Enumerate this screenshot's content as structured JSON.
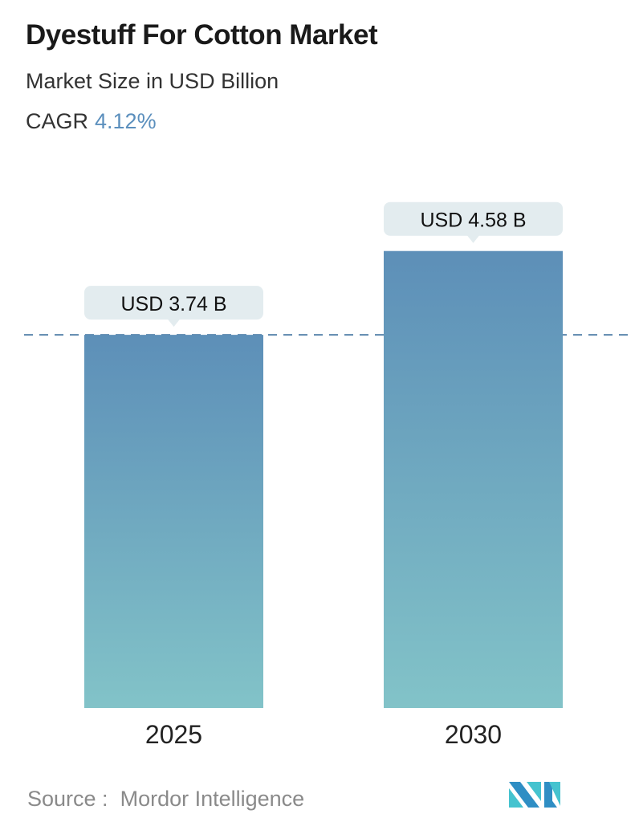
{
  "header": {
    "title": "Dyestuff For Cotton Market",
    "subtitle": "Market Size in USD Billion",
    "cagr_label": "CAGR",
    "cagr_value": "4.12%"
  },
  "chart_data": {
    "type": "bar",
    "categories": [
      "2025",
      "2030"
    ],
    "values": [
      3.74,
      4.58
    ],
    "data_labels": [
      "USD 3.74 B",
      "USD 4.58 B"
    ],
    "unit": "USD Billion",
    "ylim": [
      0,
      4.58
    ],
    "grid": false,
    "reference_line": {
      "value": 3.74,
      "style": "dashed"
    },
    "colors": {
      "bar_top": "#5d8fb8",
      "bar_bottom": "#82c3c8",
      "label_bg": "#e3ecef",
      "accent": "#5b8fbd"
    }
  },
  "footer": {
    "source_label": "Source :",
    "source_value": "Mordor Intelligence",
    "logo_text": "MN"
  }
}
